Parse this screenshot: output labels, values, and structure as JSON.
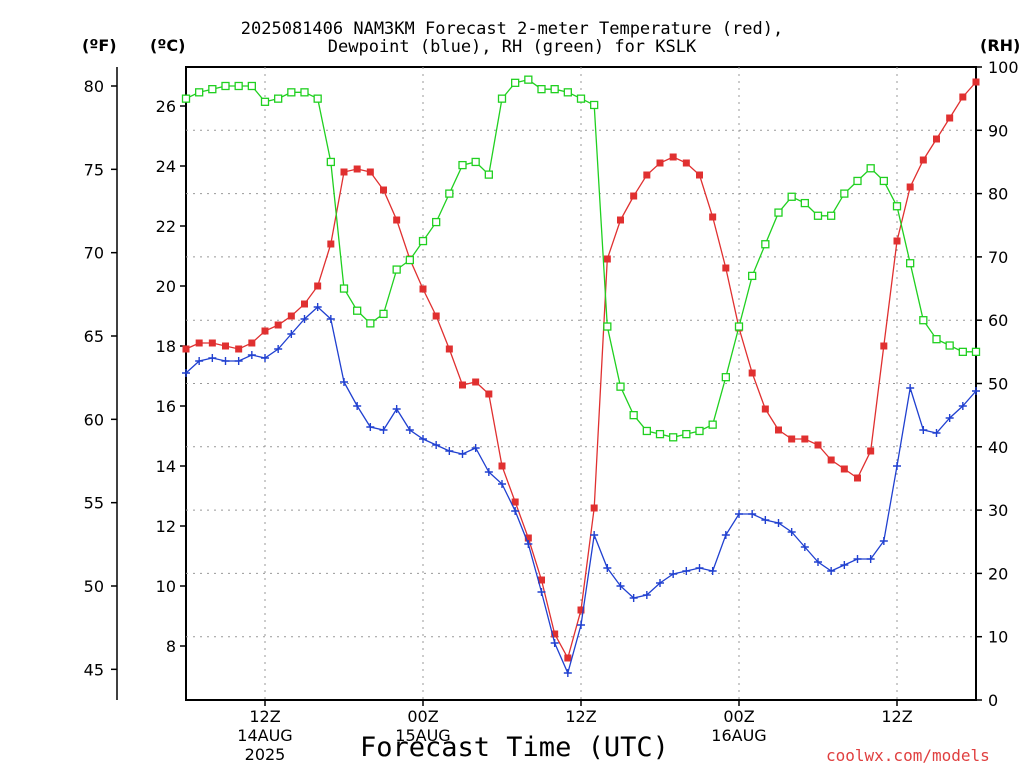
{
  "title_line1": "2025081406 NAM3KM Forecast 2-meter Temperature (red),",
  "title_line2": "Dewpoint (blue), RH (green) for KSLK",
  "units": {
    "f": "(ºF)",
    "c": "(ºC)",
    "rh": "(RH)"
  },
  "xlabel": "Forecast Time (UTC)",
  "credit": "coolwx.com/models",
  "chart_data": {
    "type": "line",
    "x_unit": "forecast hour (run 2025081406)",
    "xlim": [
      0,
      60
    ],
    "x_ticks": [
      {
        "x": 6,
        "label1": "12Z",
        "label2": "14AUG",
        "label3": "2025"
      },
      {
        "x": 18,
        "label1": "00Z",
        "label2": "15AUG",
        "label3": ""
      },
      {
        "x": 30,
        "label1": "12Z",
        "label2": "",
        "label3": ""
      },
      {
        "x": 42,
        "label1": "00Z",
        "label2": "16AUG",
        "label3": ""
      },
      {
        "x": 54,
        "label1": "12Z",
        "label2": "",
        "label3": ""
      }
    ],
    "left_c_axis": {
      "ylim": [
        6.2,
        27.3
      ],
      "ticks": [
        8,
        10,
        12,
        14,
        16,
        18,
        20,
        22,
        24,
        26
      ]
    },
    "left_f_axis": {
      "ticks": [
        45,
        50,
        55,
        60,
        65,
        70,
        75,
        80
      ]
    },
    "right_rh_axis": {
      "ylim": [
        0,
        100
      ],
      "ticks": [
        0,
        10,
        20,
        30,
        40,
        50,
        60,
        70,
        80,
        90,
        100
      ]
    },
    "grid": true,
    "series": [
      {
        "name": "Temperature",
        "color": "#e03030",
        "marker": "filled-square",
        "axis": "c",
        "x": [
          0,
          1,
          2,
          3,
          4,
          5,
          6,
          7,
          8,
          9,
          10,
          11,
          12,
          13,
          14,
          15,
          16,
          17,
          18,
          19,
          20,
          21,
          22,
          23,
          24,
          25,
          26,
          27,
          28,
          29,
          30,
          31,
          32,
          33,
          34,
          35,
          36,
          37,
          38,
          39,
          40,
          41,
          42,
          43,
          44,
          45,
          46,
          47,
          48,
          49,
          50,
          51,
          52,
          53,
          54,
          55,
          56,
          57,
          58,
          59,
          60
        ],
        "values": [
          17.9,
          18.1,
          18.1,
          18.0,
          17.9,
          18.1,
          18.5,
          18.7,
          19.0,
          19.4,
          20.0,
          21.4,
          23.8,
          23.9,
          23.8,
          23.2,
          22.2,
          20.9,
          19.9,
          19.0,
          17.9,
          16.7,
          16.8,
          16.4,
          14.0,
          12.8,
          11.6,
          10.2,
          8.4,
          7.6,
          9.2,
          12.6,
          20.9,
          22.2,
          23.0,
          23.7,
          24.1,
          24.3,
          24.1,
          23.7,
          22.3,
          20.6,
          18.6,
          17.1,
          15.9,
          15.2,
          14.9,
          14.9,
          14.7,
          14.2,
          13.9,
          13.6,
          14.5,
          18.0,
          21.5,
          23.3,
          24.2,
          24.9,
          25.6,
          26.3,
          26.8
        ],
        "label": ""
      },
      {
        "name": "Dewpoint",
        "color": "#2040d0",
        "marker": "plus",
        "axis": "c",
        "x": [
          0,
          1,
          2,
          3,
          4,
          5,
          6,
          7,
          8,
          9,
          10,
          11,
          12,
          13,
          14,
          15,
          16,
          17,
          18,
          19,
          20,
          21,
          22,
          23,
          24,
          25,
          26,
          27,
          28,
          29,
          30,
          31,
          32,
          33,
          34,
          35,
          36,
          37,
          38,
          39,
          40,
          41,
          42,
          43,
          44,
          45,
          46,
          47,
          48,
          49,
          50,
          51,
          52,
          53,
          54,
          55,
          56,
          57,
          58,
          59,
          60
        ],
        "values": [
          17.1,
          17.5,
          17.6,
          17.5,
          17.5,
          17.7,
          17.6,
          17.9,
          18.4,
          18.9,
          19.3,
          18.9,
          16.8,
          16.0,
          15.3,
          15.2,
          15.9,
          15.2,
          14.9,
          14.7,
          14.5,
          14.4,
          14.6,
          13.8,
          13.4,
          12.5,
          11.4,
          9.8,
          8.1,
          7.1,
          8.7,
          11.7,
          10.6,
          10.0,
          9.6,
          9.7,
          10.1,
          10.4,
          10.5,
          10.6,
          10.5,
          11.7,
          12.4,
          12.4,
          12.2,
          12.1,
          11.8,
          11.3,
          10.8,
          10.5,
          10.7,
          10.9,
          10.9,
          11.5,
          14.0,
          16.6,
          15.2,
          15.1,
          15.6,
          16.0,
          16.5
        ],
        "label": ""
      },
      {
        "name": "RH",
        "color": "#20d020",
        "marker": "open-square",
        "axis": "rh",
        "x": [
          0,
          1,
          2,
          3,
          4,
          5,
          6,
          7,
          8,
          9,
          10,
          11,
          12,
          13,
          14,
          15,
          16,
          17,
          18,
          19,
          20,
          21,
          22,
          23,
          24,
          25,
          26,
          27,
          28,
          29,
          30,
          31,
          32,
          33,
          34,
          35,
          36,
          37,
          38,
          39,
          40,
          41,
          42,
          43,
          44,
          45,
          46,
          47,
          48,
          49,
          50,
          51,
          52,
          53,
          54,
          55,
          56,
          57,
          58,
          59,
          60
        ],
        "values": [
          95,
          96,
          96.5,
          97,
          97,
          97,
          94.5,
          95,
          96,
          96,
          95,
          85,
          65,
          61.5,
          59.5,
          61,
          68,
          69.5,
          72.5,
          75.5,
          80,
          84.5,
          85,
          83,
          95,
          97.5,
          98,
          96.5,
          96.5,
          96,
          95,
          94,
          59,
          49.5,
          45,
          42.5,
          42,
          41.5,
          42,
          42.5,
          43.5,
          51,
          59,
          67,
          72,
          77,
          79.5,
          78.5,
          76.5,
          76.5,
          80,
          82,
          84,
          82,
          78,
          69,
          60,
          57,
          56,
          55,
          55
        ],
        "label": ""
      }
    ]
  }
}
